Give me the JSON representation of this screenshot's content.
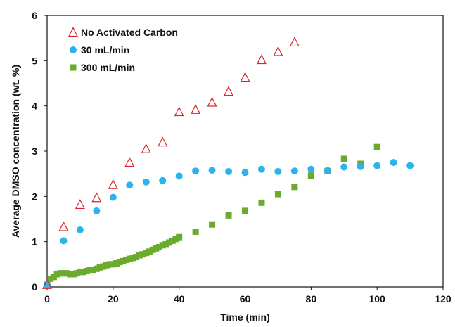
{
  "chart_data": {
    "type": "scatter",
    "title": "",
    "xlabel": "Time (min)",
    "ylabel": "Average DMSO concentration (wt. %)",
    "xlim": [
      0,
      120
    ],
    "ylim": [
      0,
      6
    ],
    "xticks": [
      "0",
      "20",
      "40",
      "60",
      "80",
      "100",
      "120"
    ],
    "yticks": [
      "0",
      "1",
      "2",
      "3",
      "4",
      "5",
      "6"
    ],
    "grid": false,
    "legend_position": "top-left",
    "series": [
      {
        "name": "No Activated Carbon",
        "marker": "triangle-open",
        "color": "#d9262b",
        "points": [
          [
            0,
            0.05
          ],
          [
            5,
            1.33
          ],
          [
            10,
            1.82
          ],
          [
            15,
            1.97
          ],
          [
            20,
            2.26
          ],
          [
            25,
            2.75
          ],
          [
            30,
            3.05
          ],
          [
            35,
            3.2
          ],
          [
            40,
            3.87
          ],
          [
            45,
            3.92
          ],
          [
            50,
            4.08
          ],
          [
            55,
            4.32
          ],
          [
            60,
            4.63
          ],
          [
            65,
            5.02
          ],
          [
            70,
            5.2
          ],
          [
            75,
            5.41
          ]
        ]
      },
      {
        "name": "30 mL/min",
        "marker": "circle",
        "color": "#2bb3ec",
        "points": [
          [
            0,
            0.05
          ],
          [
            5,
            1.02
          ],
          [
            10,
            1.26
          ],
          [
            15,
            1.68
          ],
          [
            20,
            1.98
          ],
          [
            25,
            2.25
          ],
          [
            30,
            2.32
          ],
          [
            35,
            2.35
          ],
          [
            40,
            2.45
          ],
          [
            45,
            2.56
          ],
          [
            50,
            2.58
          ],
          [
            55,
            2.55
          ],
          [
            60,
            2.53
          ],
          [
            65,
            2.6
          ],
          [
            70,
            2.55
          ],
          [
            75,
            2.56
          ],
          [
            80,
            2.6
          ],
          [
            85,
            2.57
          ],
          [
            90,
            2.65
          ],
          [
            95,
            2.66
          ],
          [
            100,
            2.68
          ],
          [
            105,
            2.75
          ],
          [
            110,
            2.68
          ]
        ]
      },
      {
        "name": "300 mL/min",
        "marker": "square",
        "color": "#6aab2e",
        "points": [
          [
            0,
            0.05
          ],
          [
            1,
            0.18
          ],
          [
            2,
            0.22
          ],
          [
            3,
            0.28
          ],
          [
            4,
            0.3
          ],
          [
            5,
            0.3
          ],
          [
            6,
            0.3
          ],
          [
            7,
            0.28
          ],
          [
            8,
            0.28
          ],
          [
            9,
            0.3
          ],
          [
            10,
            0.33
          ],
          [
            11,
            0.33
          ],
          [
            12,
            0.35
          ],
          [
            13,
            0.38
          ],
          [
            14,
            0.38
          ],
          [
            15,
            0.4
          ],
          [
            16,
            0.43
          ],
          [
            17,
            0.45
          ],
          [
            18,
            0.48
          ],
          [
            19,
            0.5
          ],
          [
            20,
            0.5
          ],
          [
            21,
            0.52
          ],
          [
            22,
            0.55
          ],
          [
            23,
            0.57
          ],
          [
            24,
            0.6
          ],
          [
            25,
            0.62
          ],
          [
            26,
            0.64
          ],
          [
            27,
            0.66
          ],
          [
            28,
            0.7
          ],
          [
            29,
            0.72
          ],
          [
            30,
            0.75
          ],
          [
            31,
            0.78
          ],
          [
            32,
            0.82
          ],
          [
            33,
            0.85
          ],
          [
            34,
            0.88
          ],
          [
            35,
            0.92
          ],
          [
            36,
            0.95
          ],
          [
            37,
            0.98
          ],
          [
            38,
            1.02
          ],
          [
            39,
            1.06
          ],
          [
            40,
            1.1
          ],
          [
            45,
            1.22
          ],
          [
            50,
            1.38
          ],
          [
            55,
            1.58
          ],
          [
            60,
            1.68
          ],
          [
            65,
            1.86
          ],
          [
            70,
            2.05
          ],
          [
            75,
            2.21
          ],
          [
            80,
            2.46
          ],
          [
            85,
            2.56
          ],
          [
            90,
            2.83
          ],
          [
            95,
            2.72
          ],
          [
            100,
            3.09
          ]
        ]
      }
    ]
  }
}
